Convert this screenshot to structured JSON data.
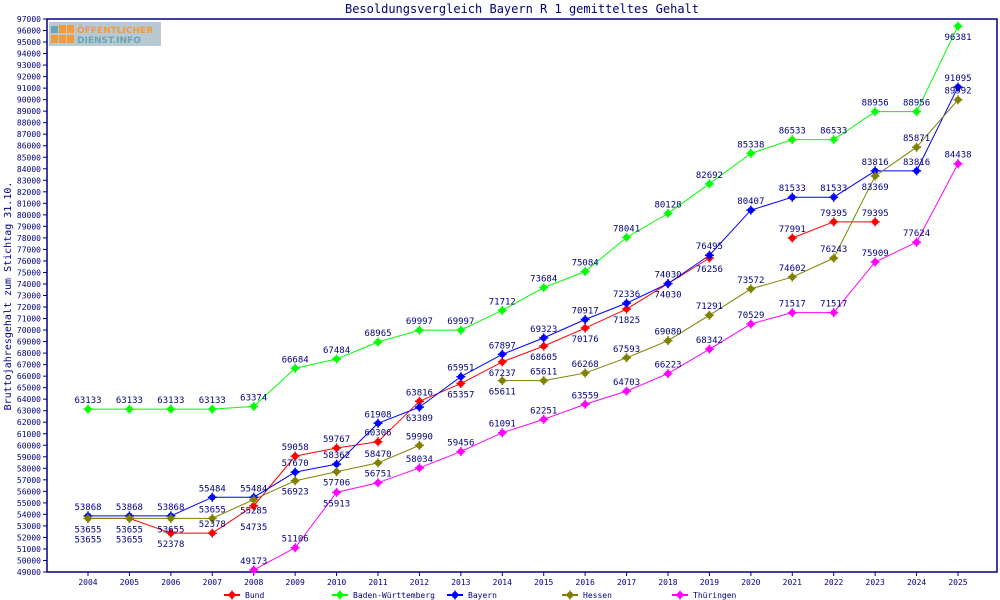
{
  "logo_text": "ÖFFENTLICHER DIENST.INFO",
  "chart_data": {
    "type": "line",
    "title": "Besoldungsvergleich Bayern R 1 gemitteltes Gehalt",
    "xlabel": "",
    "ylabel": "Bruttojahresgehalt zum Stichtag 31.10.",
    "ylim": [
      49000,
      97000
    ],
    "ytick_step": 1000,
    "grid": false,
    "legend_position": "bottom",
    "categories": [
      "2004",
      "2005",
      "2006",
      "2007",
      "2008",
      "2009",
      "2010",
      "2011",
      "2012",
      "2013",
      "2014",
      "2015",
      "2016",
      "2017",
      "2018",
      "2019",
      "2020",
      "2021",
      "2022",
      "2023",
      "2024",
      "2025"
    ],
    "series": [
      {
        "name": "Bund",
        "color": "#ff0000",
        "values": [
          53655,
          53655,
          52378,
          52378,
          54735,
          59058,
          59767,
          60306,
          63816,
          65357,
          67237,
          68605,
          70176,
          71825,
          74030,
          76256,
          null,
          77991,
          79395,
          79395,
          null,
          null
        ]
      },
      {
        "name": "Baden-Württemberg",
        "color": "#00ff00",
        "values": [
          63133,
          63133,
          63133,
          63133,
          63374,
          66684,
          67484,
          68965,
          69997,
          69997,
          71712,
          73684,
          75084,
          78041,
          80128,
          82692,
          85338,
          86533,
          86533,
          88956,
          88956,
          96381
        ]
      },
      {
        "name": "Bayern",
        "color": "#0000ff",
        "values": [
          53868,
          53868,
          53868,
          55484,
          55484,
          57670,
          58362,
          61908,
          63309,
          65951,
          67897,
          69323,
          70917,
          72336,
          74030,
          76495,
          80407,
          81533,
          81533,
          83816,
          83816,
          91095
        ]
      },
      {
        "name": "Hessen",
        "color": "#808000",
        "values": [
          53655,
          53655,
          53655,
          53655,
          55285,
          56923,
          57706,
          58470,
          59990,
          null,
          65611,
          65611,
          66268,
          67593,
          69080,
          71291,
          73572,
          74602,
          76243,
          83369,
          85871,
          89992
        ]
      },
      {
        "name": "Thüringen",
        "color": "#ff00ff",
        "values": [
          null,
          null,
          null,
          null,
          49173,
          51106,
          55913,
          56751,
          58034,
          59456,
          61091,
          62251,
          63559,
          64703,
          66223,
          68342,
          70529,
          71517,
          71517,
          75909,
          77624,
          84438
        ]
      }
    ]
  }
}
